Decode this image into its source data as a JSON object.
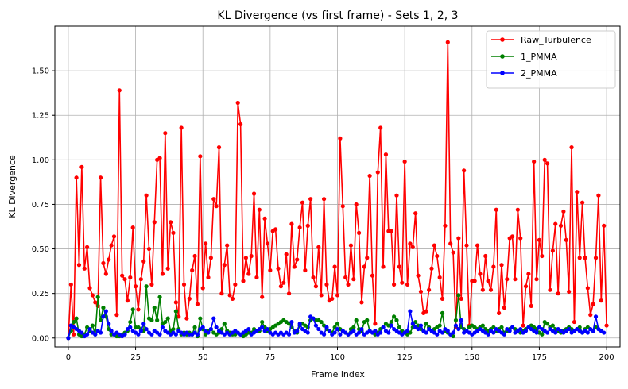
{
  "chart_data": {
    "type": "line",
    "title": "KL Divergence (vs first frame) - Sets 1, 2, 3",
    "xlabel": "Frame index",
    "ylabel": "KL Divergence",
    "xlim": [
      -5,
      205
    ],
    "ylim": [
      -0.05,
      1.75
    ],
    "xticks": [
      0,
      25,
      50,
      75,
      100,
      125,
      150,
      175,
      200
    ],
    "yticks": [
      0.0,
      0.25,
      0.5,
      0.75,
      1.0,
      1.25,
      1.5
    ],
    "ytick_labels": [
      "0.00",
      "0.25",
      "0.50",
      "0.75",
      "1.00",
      "1.25",
      "1.50"
    ],
    "grid": true,
    "legend_position": "top-right",
    "series": [
      {
        "name": "Raw_Turbulence",
        "color": "#ff0000",
        "x_start": 0,
        "values": [
          0.0,
          0.3,
          0.02,
          0.9,
          0.41,
          0.96,
          0.39,
          0.51,
          0.28,
          0.24,
          0.2,
          0.18,
          0.9,
          0.42,
          0.36,
          0.44,
          0.52,
          0.57,
          0.13,
          1.39,
          0.35,
          0.33,
          0.21,
          0.34,
          0.62,
          0.29,
          0.16,
          0.33,
          0.43,
          0.8,
          0.5,
          0.3,
          0.65,
          1.0,
          1.01,
          0.36,
          1.15,
          0.39,
          0.65,
          0.59,
          0.2,
          0.12,
          1.18,
          0.3,
          0.11,
          0.22,
          0.38,
          0.46,
          0.19,
          1.02,
          0.28,
          0.53,
          0.34,
          0.45,
          0.78,
          0.74,
          1.07,
          0.25,
          0.41,
          0.52,
          0.24,
          0.22,
          0.3,
          1.32,
          1.2,
          0.32,
          0.45,
          0.36,
          0.46,
          0.81,
          0.34,
          0.72,
          0.23,
          0.67,
          0.53,
          0.38,
          0.6,
          0.61,
          0.39,
          0.29,
          0.31,
          0.47,
          0.25,
          0.64,
          0.4,
          0.44,
          0.62,
          0.76,
          0.38,
          0.63,
          0.78,
          0.34,
          0.29,
          0.51,
          0.24,
          0.78,
          0.3,
          0.21,
          0.22,
          0.4,
          0.24,
          1.12,
          0.74,
          0.34,
          0.3,
          0.52,
          0.33,
          0.75,
          0.59,
          0.2,
          0.4,
          0.45,
          0.91,
          0.35,
          0.08,
          0.93,
          1.18,
          0.4,
          1.03,
          0.6,
          0.6,
          0.3,
          0.8,
          0.4,
          0.31,
          0.99,
          0.3,
          0.53,
          0.51,
          0.7,
          0.35,
          0.26,
          0.14,
          0.15,
          0.27,
          0.39,
          0.52,
          0.46,
          0.34,
          0.22,
          0.63,
          1.66,
          0.53,
          0.48,
          0.06,
          0.56,
          0.22,
          0.94,
          0.52,
          0.07,
          0.32,
          0.32,
          0.52,
          0.36,
          0.27,
          0.46,
          0.32,
          0.27,
          0.4,
          0.72,
          0.14,
          0.41,
          0.17,
          0.33,
          0.56,
          0.57,
          0.33,
          0.72,
          0.56,
          0.07,
          0.29,
          0.36,
          0.18,
          0.99,
          0.33,
          0.55,
          0.46,
          1.0,
          0.98,
          0.27,
          0.49,
          0.64,
          0.25,
          0.63,
          0.71,
          0.55,
          0.26,
          1.07,
          0.09,
          0.82,
          0.45,
          0.76,
          0.45,
          0.28,
          0.13,
          0.19,
          0.45,
          0.8,
          0.21,
          0.63,
          0.07
        ]
      },
      {
        "name": "1_PMMA",
        "color": "#008000",
        "x_start": 0,
        "values": [
          0.0,
          0.04,
          0.09,
          0.11,
          0.02,
          0.01,
          0.02,
          0.06,
          0.04,
          0.07,
          0.02,
          0.23,
          0.1,
          0.17,
          0.12,
          0.05,
          0.02,
          0.02,
          0.01,
          0.01,
          0.02,
          0.03,
          0.04,
          0.09,
          0.16,
          0.06,
          0.06,
          0.05,
          0.04,
          0.29,
          0.11,
          0.1,
          0.17,
          0.1,
          0.23,
          0.08,
          0.09,
          0.11,
          0.04,
          0.05,
          0.15,
          0.05,
          0.02,
          0.03,
          0.02,
          0.03,
          0.02,
          0.06,
          0.01,
          0.11,
          0.05,
          0.02,
          0.04,
          0.05,
          0.03,
          0.02,
          0.03,
          0.05,
          0.08,
          0.04,
          0.03,
          0.02,
          0.02,
          0.03,
          0.02,
          0.01,
          0.02,
          0.03,
          0.03,
          0.05,
          0.04,
          0.04,
          0.09,
          0.06,
          0.04,
          0.05,
          0.06,
          0.07,
          0.08,
          0.09,
          0.1,
          0.09,
          0.08,
          0.06,
          0.04,
          0.03,
          0.07,
          0.08,
          0.07,
          0.06,
          0.1,
          0.11,
          0.1,
          0.1,
          0.09,
          0.07,
          0.05,
          0.04,
          0.03,
          0.06,
          0.08,
          0.05,
          0.04,
          0.03,
          0.02,
          0.05,
          0.06,
          0.1,
          0.05,
          0.04,
          0.09,
          0.1,
          0.04,
          0.03,
          0.02,
          0.03,
          0.05,
          0.06,
          0.08,
          0.07,
          0.09,
          0.12,
          0.1,
          0.06,
          0.04,
          0.03,
          0.02,
          0.03,
          0.06,
          0.09,
          0.07,
          0.05,
          0.04,
          0.08,
          0.06,
          0.04,
          0.05,
          0.06,
          0.07,
          0.14,
          0.04,
          0.03,
          0.02,
          0.01,
          0.1,
          0.24,
          0.06,
          0.05,
          0.04,
          0.06,
          0.07,
          0.06,
          0.05,
          0.06,
          0.07,
          0.05,
          0.04,
          0.05,
          0.06,
          0.04,
          0.05,
          0.06,
          0.03,
          0.04,
          0.05,
          0.06,
          0.05,
          0.04,
          0.03,
          0.04,
          0.05,
          0.06,
          0.07,
          0.06,
          0.05,
          0.03,
          0.02,
          0.09,
          0.08,
          0.06,
          0.07,
          0.05,
          0.04,
          0.03,
          0.04,
          0.05,
          0.06,
          0.05,
          0.04,
          0.05,
          0.06,
          0.03,
          0.05,
          0.06,
          0.05,
          0.04,
          0.06,
          0.05
        ]
      },
      {
        "name": "2_PMMA",
        "color": "#0000ff",
        "x_start": 0,
        "values": [
          0.0,
          0.07,
          0.06,
          0.05,
          0.04,
          0.03,
          0.01,
          0.02,
          0.05,
          0.03,
          0.02,
          0.04,
          0.03,
          0.12,
          0.15,
          0.08,
          0.04,
          0.02,
          0.03,
          0.02,
          0.01,
          0.02,
          0.05,
          0.06,
          0.04,
          0.03,
          0.02,
          0.04,
          0.08,
          0.05,
          0.03,
          0.02,
          0.04,
          0.03,
          0.02,
          0.06,
          0.04,
          0.03,
          0.02,
          0.03,
          0.02,
          0.04,
          0.03,
          0.02,
          0.03,
          0.02,
          0.02,
          0.03,
          0.02,
          0.05,
          0.06,
          0.04,
          0.03,
          0.05,
          0.11,
          0.06,
          0.04,
          0.03,
          0.02,
          0.03,
          0.02,
          0.03,
          0.04,
          0.03,
          0.02,
          0.03,
          0.04,
          0.05,
          0.02,
          0.03,
          0.04,
          0.05,
          0.06,
          0.04,
          0.05,
          0.03,
          0.02,
          0.03,
          0.02,
          0.03,
          0.02,
          0.03,
          0.02,
          0.09,
          0.03,
          0.04,
          0.08,
          0.05,
          0.04,
          0.03,
          0.12,
          0.11,
          0.07,
          0.05,
          0.03,
          0.02,
          0.06,
          0.04,
          0.02,
          0.03,
          0.05,
          0.02,
          0.04,
          0.03,
          0.02,
          0.03,
          0.04,
          0.02,
          0.03,
          0.05,
          0.02,
          0.03,
          0.04,
          0.03,
          0.04,
          0.02,
          0.03,
          0.06,
          0.04,
          0.03,
          0.07,
          0.05,
          0.04,
          0.03,
          0.02,
          0.03,
          0.04,
          0.15,
          0.08,
          0.06,
          0.05,
          0.07,
          0.04,
          0.03,
          0.05,
          0.04,
          0.03,
          0.02,
          0.04,
          0.03,
          0.05,
          0.04,
          0.02,
          0.03,
          0.07,
          0.05,
          0.1,
          0.03,
          0.04,
          0.03,
          0.02,
          0.03,
          0.04,
          0.05,
          0.04,
          0.03,
          0.02,
          0.04,
          0.03,
          0.05,
          0.04,
          0.03,
          0.02,
          0.05,
          0.04,
          0.06,
          0.03,
          0.04,
          0.05,
          0.03,
          0.04,
          0.06,
          0.05,
          0.04,
          0.03,
          0.06,
          0.05,
          0.04,
          0.03,
          0.05,
          0.04,
          0.03,
          0.05,
          0.04,
          0.03,
          0.04,
          0.05,
          0.03,
          0.04,
          0.05,
          0.04,
          0.03,
          0.04,
          0.03,
          0.05,
          0.04,
          0.12,
          0.05,
          0.04,
          0.03
        ]
      }
    ]
  }
}
